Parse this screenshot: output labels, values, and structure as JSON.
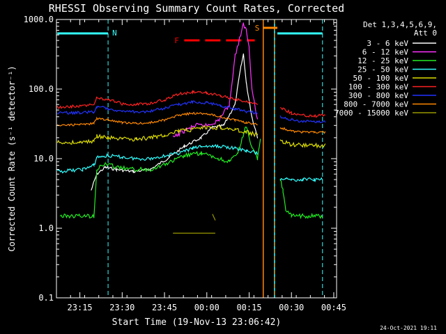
{
  "chart_data": {
    "type": "line",
    "title": "RHESSI Observing Summary Count Rates, Corrected",
    "ylabel": "Corrected Count Rate (s⁻¹ detector⁻¹)",
    "xlabel": "Start Time (19-Nov-13 23:06:42)",
    "y_scale": "log",
    "ylim": [
      0.1,
      1000
    ],
    "xlim": [
      "23:06:42",
      "00:46:00"
    ],
    "y_ticks": [
      "0.1",
      "1.0",
      "10.0",
      "100.0",
      "1000.0"
    ],
    "x_ticks": [
      "23:15",
      "23:30",
      "23:45",
      "00:00",
      "00:15",
      "00:30",
      "00:45"
    ],
    "legend_header": [
      "Det 1,3,4,5,6,9,",
      "Att 0"
    ],
    "legend_placement": "right",
    "footer_date": "24-Oct-2021 19:11",
    "annotations": {
      "night_label": "N",
      "flare_label": "F",
      "saa_label": "S",
      "night_markers": [
        "23:25",
        "00:41"
      ],
      "saa_markers": [
        "00:24",
        "00:20"
      ],
      "night_bars": [
        [
          "23:07",
          "23:25"
        ],
        [
          "00:25",
          "00:41"
        ]
      ],
      "saa_bar": [
        "00:20",
        "00:25"
      ],
      "flare_bar": [
        "23:52",
        "00:17"
      ]
    },
    "series": [
      {
        "name": "3 - 6 keV",
        "color": "#ffffff"
      },
      {
        "name": "6 - 12 keV",
        "color": "#ff33ff"
      },
      {
        "name": "12 - 25 keV",
        "color": "#22ee22"
      },
      {
        "name": "25 - 50 keV",
        "color": "#33ffff"
      },
      {
        "name": "50 - 100 keV",
        "color": "#dddd00"
      },
      {
        "name": "100 - 300 keV",
        "color": "#ff2222"
      },
      {
        "name": "300 - 800 keV",
        "color": "#2233ff"
      },
      {
        "name": "800 - 7000 keV",
        "color": "#ff8800"
      },
      {
        "name": "7000 - 15000 keV",
        "color": "#999900"
      }
    ],
    "data": [
      {
        "x": [
          "23:19",
          "23:21",
          "23:24",
          "23:28",
          "23:34",
          "23:40",
          "23:46",
          "23:52",
          "23:58",
          "00:02",
          "00:06",
          "00:10",
          "00:12",
          "00:13",
          "00:14",
          "00:16",
          "00:18"
        ],
        "y": [
          3.5,
          6,
          7.5,
          7,
          6.5,
          7,
          10,
          15,
          20,
          28,
          30,
          60,
          200,
          320,
          120,
          40,
          20
        ]
      },
      {
        "x": [
          "23:48",
          "23:52",
          "23:56",
          "00:00",
          "00:04",
          "00:08",
          "00:10",
          "00:12",
          "00:13",
          "00:14",
          "00:15",
          "00:16",
          "00:18"
        ],
        "y": [
          20,
          25,
          30,
          30,
          35,
          60,
          300,
          600,
          850,
          700,
          400,
          100,
          35
        ]
      },
      {
        "x": [
          "23:08",
          "23:20",
          "23:21",
          "23:24",
          "23:28",
          "23:34",
          "23:40",
          "23:46",
          "23:52",
          "23:58",
          "00:04",
          "00:08",
          "00:11",
          "00:14",
          "00:16",
          "00:18",
          "00:19"
        ],
        "y": [
          1.5,
          1.5,
          7,
          8.5,
          7.5,
          7,
          7,
          8.5,
          11,
          12,
          10,
          9,
          12,
          30,
          14,
          10,
          20
        ],
        "x2": [
          "00:26",
          "00:27",
          "00:28",
          "00:30",
          "00:34",
          "00:38",
          "00:41"
        ],
        "y2": [
          5,
          3.5,
          1.8,
          1.5,
          1.5,
          1.5,
          1.5
        ]
      },
      {
        "x": [
          "23:07",
          "23:16",
          "23:20",
          "23:21",
          "23:25",
          "23:30",
          "23:35",
          "23:40",
          "23:45",
          "23:50",
          "23:55",
          "23:58",
          "00:02",
          "00:06",
          "00:10",
          "00:14",
          "00:18"
        ],
        "y": [
          6.5,
          7,
          8,
          10.5,
          11,
          10.5,
          10,
          10,
          11,
          12,
          14,
          15,
          15,
          15,
          14,
          13,
          12
        ],
        "x2": [
          "00:26",
          "00:28",
          "00:30",
          "00:34",
          "00:38",
          "00:41"
        ],
        "y2": [
          5,
          5,
          5,
          5,
          5,
          5
        ]
      },
      {
        "x": [
          "23:07",
          "23:15",
          "23:20",
          "23:21",
          "23:25",
          "23:30",
          "23:35",
          "23:40",
          "23:45",
          "23:50",
          "23:55",
          "00:00",
          "00:05",
          "00:10",
          "00:14",
          "00:18"
        ],
        "y": [
          17,
          17,
          18,
          21,
          20,
          19,
          19,
          20,
          22,
          25,
          26,
          28,
          28,
          26,
          24,
          22
        ],
        "x2": [
          "00:26",
          "00:30",
          "00:34",
          "00:38",
          "00:42"
        ],
        "y2": [
          18,
          16,
          15.5,
          15.5,
          15.5
        ]
      },
      {
        "x": [
          "23:07",
          "23:15",
          "23:20",
          "23:21",
          "23:25",
          "23:30",
          "23:35",
          "23:40",
          "23:45",
          "23:50",
          "23:55",
          "00:00",
          "00:05",
          "00:10",
          "00:14",
          "00:18"
        ],
        "y": [
          55,
          57,
          60,
          75,
          70,
          62,
          60,
          62,
          70,
          85,
          90,
          88,
          80,
          72,
          65,
          60
        ],
        "x2": [
          "00:26",
          "00:30",
          "00:34",
          "00:38",
          "00:42"
        ],
        "y2": [
          55,
          45,
          42,
          41,
          42
        ]
      },
      {
        "x": [
          "23:07",
          "23:15",
          "23:20",
          "23:21",
          "23:25",
          "23:30",
          "23:35",
          "23:40",
          "23:45",
          "23:50",
          "23:55",
          "00:00",
          "00:05",
          "00:10",
          "00:14",
          "00:18"
        ],
        "y": [
          45,
          46,
          47,
          56,
          53,
          48,
          47,
          48,
          53,
          60,
          65,
          64,
          58,
          52,
          48,
          45
        ],
        "x2": [
          "00:26",
          "00:30",
          "00:34",
          "00:38",
          "00:42"
        ],
        "y2": [
          40,
          36,
          34,
          34,
          34
        ]
      },
      {
        "x": [
          "23:07",
          "23:15",
          "23:20",
          "23:21",
          "23:25",
          "23:30",
          "23:35",
          "23:40",
          "23:45",
          "23:50",
          "23:55",
          "00:00",
          "00:05",
          "00:10",
          "00:14",
          "00:18"
        ],
        "y": [
          30,
          31,
          32,
          38,
          36,
          33,
          32,
          33,
          36,
          42,
          45,
          44,
          40,
          36,
          33,
          31
        ],
        "x2": [
          "00:26",
          "00:30",
          "00:34",
          "00:38",
          "00:42"
        ],
        "y2": [
          28,
          25,
          24,
          24,
          24
        ]
      },
      {
        "x": [
          "23:48",
          "23:50",
          "23:52",
          "23:54",
          "23:56",
          "23:58",
          "00:00",
          "00:02",
          "00:03"
        ],
        "y": [
          0.85,
          0.85,
          0.85,
          0.85,
          0.85,
          0.85,
          0.85,
          0.85,
          0.85
        ],
        "x2": [
          "00:02",
          "00:03"
        ],
        "y2": [
          1.6,
          1.3
        ]
      }
    ]
  }
}
